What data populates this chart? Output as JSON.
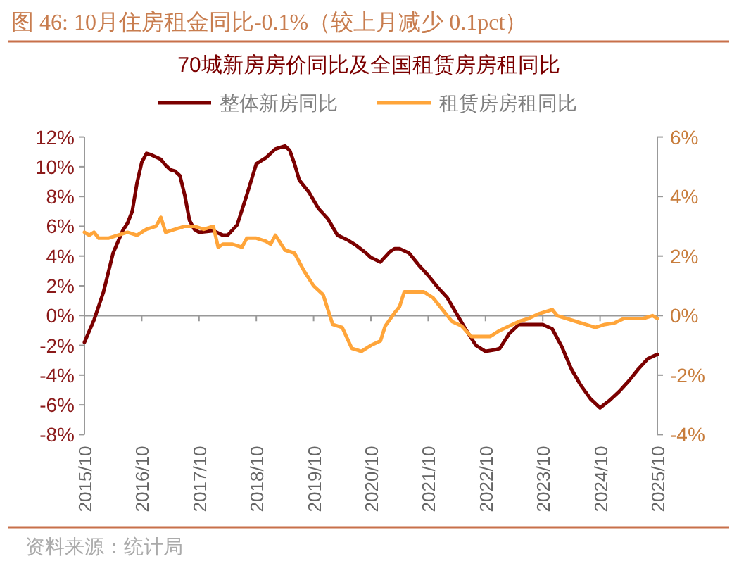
{
  "chart_data": {
    "type": "line",
    "title": "图 46: 10月住房租金同比-0.1%（较上月减少 0.1pct）",
    "subtitle": "70城新房房价同比及全国租赁房房租同比",
    "annotations": [
      "资料来源：统计局"
    ],
    "legend": "top",
    "marker": "none",
    "line_style": "solid",
    "xlim": [
      "2015-10",
      "2025-10"
    ],
    "xticks": [
      {
        "value": "2015-10",
        "label": "2015/10"
      },
      {
        "value": "2016-10",
        "label": "2016/10"
      },
      {
        "value": "2017-10",
        "label": "2017/10"
      },
      {
        "value": "2018-10",
        "label": "2018/10"
      },
      {
        "value": "2019-10",
        "label": "2019/10"
      },
      {
        "value": "2020-10",
        "label": "2020/10"
      },
      {
        "value": "2021-10",
        "label": "2021/10"
      },
      {
        "value": "2022-10",
        "label": "2022/10"
      },
      {
        "value": "2023-10",
        "label": "2023/10"
      },
      {
        "value": "2024-10",
        "label": "2024/10"
      },
      {
        "value": "2025-10",
        "label": "2025/10"
      }
    ],
    "ylim": [
      -8,
      12
    ],
    "yticks": [
      {
        "value": -8,
        "label": "-8%"
      },
      {
        "value": -6,
        "label": "-6%"
      },
      {
        "value": -4,
        "label": "-4%"
      },
      {
        "value": -2,
        "label": "-2%"
      },
      {
        "value": 0,
        "label": "0%"
      },
      {
        "value": 2,
        "label": "2%"
      },
      {
        "value": 4,
        "label": "4%"
      },
      {
        "value": 6,
        "label": "6%"
      },
      {
        "value": 8,
        "label": "8%"
      },
      {
        "value": 10,
        "label": "10%"
      },
      {
        "value": 12,
        "label": "12%"
      }
    ],
    "y2lim": [
      -4,
      6
    ],
    "y2ticks": [
      {
        "value": -4,
        "label": "-4%"
      },
      {
        "value": -2,
        "label": "-2%"
      },
      {
        "value": 0,
        "label": "0%"
      },
      {
        "value": 2,
        "label": "2%"
      },
      {
        "value": 4,
        "label": "4%"
      },
      {
        "value": 6,
        "label": "6%"
      }
    ],
    "series": [
      {
        "name": "整体新房同比",
        "color": "#7b0000",
        "x": [
          "2015-10",
          "2015-12",
          "2016-02",
          "2016-04",
          "2016-06",
          "2016-07",
          "2016-08",
          "2016-09",
          "2016-10",
          "2016-11",
          "2016-12",
          "2017-02",
          "2017-03",
          "2017-04",
          "2017-05",
          "2017-06",
          "2017-07",
          "2017-08",
          "2017-09",
          "2017-10",
          "2018-01",
          "2018-03",
          "2018-04",
          "2018-06",
          "2018-08",
          "2018-10",
          "2018-12",
          "2019-02",
          "2019-04",
          "2019-05",
          "2019-06",
          "2019-07",
          "2019-09",
          "2019-11",
          "2020-01",
          "2020-03",
          "2020-05",
          "2020-07",
          "2020-09",
          "2020-10",
          "2020-12",
          "2021-02",
          "2021-03",
          "2021-04",
          "2021-06",
          "2021-08",
          "2021-10",
          "2021-12",
          "2022-02",
          "2022-04",
          "2022-06",
          "2022-08",
          "2022-10",
          "2022-12",
          "2023-01",
          "2023-03",
          "2023-05",
          "2023-07",
          "2023-09",
          "2023-10",
          "2023-12",
          "2024-02",
          "2024-04",
          "2024-06",
          "2024-08",
          "2024-10",
          "2024-12",
          "2025-02",
          "2025-04",
          "2025-06",
          "2025-08",
          "2025-10"
        ],
        "values": [
          -1.8,
          -0.3,
          1.6,
          4.2,
          5.7,
          6.2,
          7.0,
          8.9,
          10.3,
          10.9,
          10.8,
          10.5,
          10.1,
          9.8,
          9.7,
          9.4,
          8.1,
          6.4,
          5.8,
          5.6,
          5.7,
          5.4,
          5.4,
          6.1,
          8.1,
          10.2,
          10.6,
          11.2,
          11.4,
          11.1,
          10.2,
          9.1,
          8.3,
          7.2,
          6.5,
          5.4,
          5.1,
          4.7,
          4.2,
          3.9,
          3.6,
          4.3,
          4.5,
          4.5,
          4.2,
          3.4,
          2.7,
          1.9,
          1.2,
          0.1,
          -1.0,
          -2.0,
          -2.4,
          -2.3,
          -2.2,
          -1.2,
          -0.6,
          -0.6,
          -0.6,
          -0.6,
          -0.9,
          -2.1,
          -3.6,
          -4.7,
          -5.6,
          -6.2,
          -5.7,
          -5.1,
          -4.4,
          -3.6,
          -2.9,
          -2.6
        ]
      },
      {
        "name": "租赁房房租同比",
        "color": "#ffa53a",
        "axis": "y2",
        "x": [
          "2015-10",
          "2015-11",
          "2015-12",
          "2016-01",
          "2016-03",
          "2016-05",
          "2016-07",
          "2016-09",
          "2016-11",
          "2017-01",
          "2017-02",
          "2017-03",
          "2017-05",
          "2017-07",
          "2017-09",
          "2017-11",
          "2018-01",
          "2018-02",
          "2018-03",
          "2018-05",
          "2018-07",
          "2018-08",
          "2018-10",
          "2018-12",
          "2019-01",
          "2019-02",
          "2019-04",
          "2019-06",
          "2019-08",
          "2019-10",
          "2019-12",
          "2020-01",
          "2020-02",
          "2020-04",
          "2020-06",
          "2020-08",
          "2020-10",
          "2020-12",
          "2021-01",
          "2021-03",
          "2021-04",
          "2021-05",
          "2021-07",
          "2021-09",
          "2021-11",
          "2022-01",
          "2022-03",
          "2022-05",
          "2022-07",
          "2022-09",
          "2022-11",
          "2023-01",
          "2023-03",
          "2023-05",
          "2023-07",
          "2023-09",
          "2023-11",
          "2023-12",
          "2024-01",
          "2024-03",
          "2024-05",
          "2024-07",
          "2024-09",
          "2024-11",
          "2025-01",
          "2025-03",
          "2025-05",
          "2025-07",
          "2025-09",
          "2025-10"
        ],
        "values": [
          2.8,
          2.7,
          2.8,
          2.6,
          2.6,
          2.7,
          2.8,
          2.7,
          2.9,
          3.0,
          3.3,
          2.8,
          2.9,
          3.0,
          3.0,
          2.9,
          3.0,
          2.3,
          2.4,
          2.4,
          2.3,
          2.6,
          2.6,
          2.5,
          2.4,
          2.7,
          2.2,
          2.1,
          1.5,
          1.0,
          0.7,
          0.2,
          -0.3,
          -0.4,
          -1.1,
          -1.2,
          -1.0,
          -0.85,
          -0.35,
          0.1,
          0.3,
          0.8,
          0.8,
          0.8,
          0.6,
          0.2,
          -0.2,
          -0.35,
          -0.7,
          -0.7,
          -0.7,
          -0.5,
          -0.35,
          -0.2,
          -0.1,
          0.05,
          0.15,
          0.2,
          0.0,
          -0.1,
          -0.2,
          -0.3,
          -0.4,
          -0.3,
          -0.25,
          -0.1,
          -0.1,
          -0.1,
          0.0,
          -0.1
        ]
      }
    ]
  }
}
